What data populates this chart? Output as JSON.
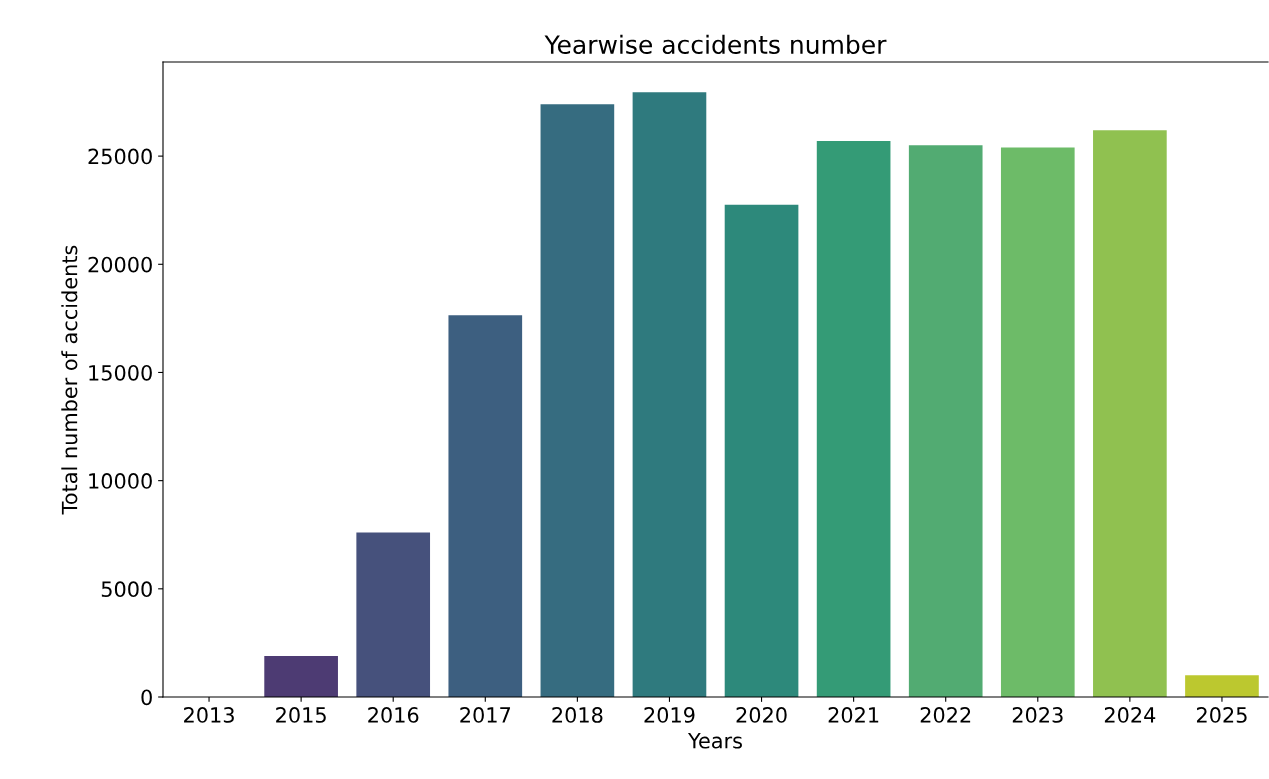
{
  "chart_data": {
    "type": "bar",
    "title": "Yearwise accidents number",
    "xlabel": "Years",
    "ylabel": "Total number of accidents",
    "categories": [
      "2013",
      "2015",
      "2016",
      "2017",
      "2018",
      "2019",
      "2020",
      "2021",
      "2022",
      "2023",
      "2024",
      "2025"
    ],
    "values": [
      0,
      1900,
      7600,
      17650,
      27400,
      27950,
      22750,
      25700,
      25500,
      25400,
      26200,
      1000
    ],
    "colors": [
      "#482576",
      "#4d3b73",
      "#46517c",
      "#3d5f80",
      "#366c80",
      "#2f7a7e",
      "#2d897b",
      "#349b76",
      "#52ab72",
      "#6dbb68",
      "#90c150",
      "#bcc82f"
    ],
    "ylim": [
      0,
      29350
    ],
    "yticks": [
      0,
      5000,
      10000,
      15000,
      20000,
      25000
    ],
    "grid": false,
    "legend": false
  }
}
